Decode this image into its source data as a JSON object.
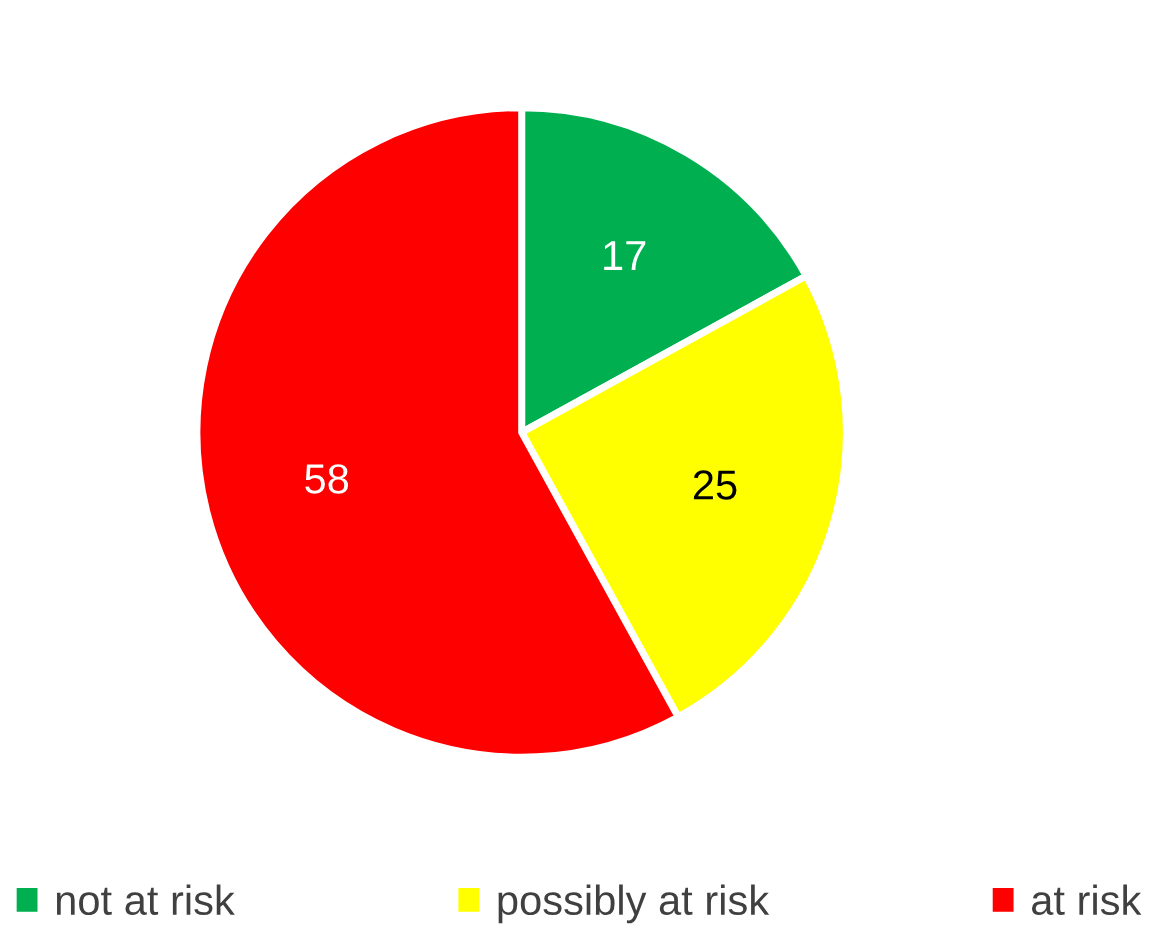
{
  "chart_data": {
    "type": "pie",
    "categories": [
      "not at risk",
      "possibly at risk",
      "at risk"
    ],
    "values": [
      17,
      25,
      58
    ],
    "colors": [
      "#00b050",
      "#ffff00",
      "#ff0000"
    ],
    "data_labels": true,
    "legend": "bottom"
  }
}
